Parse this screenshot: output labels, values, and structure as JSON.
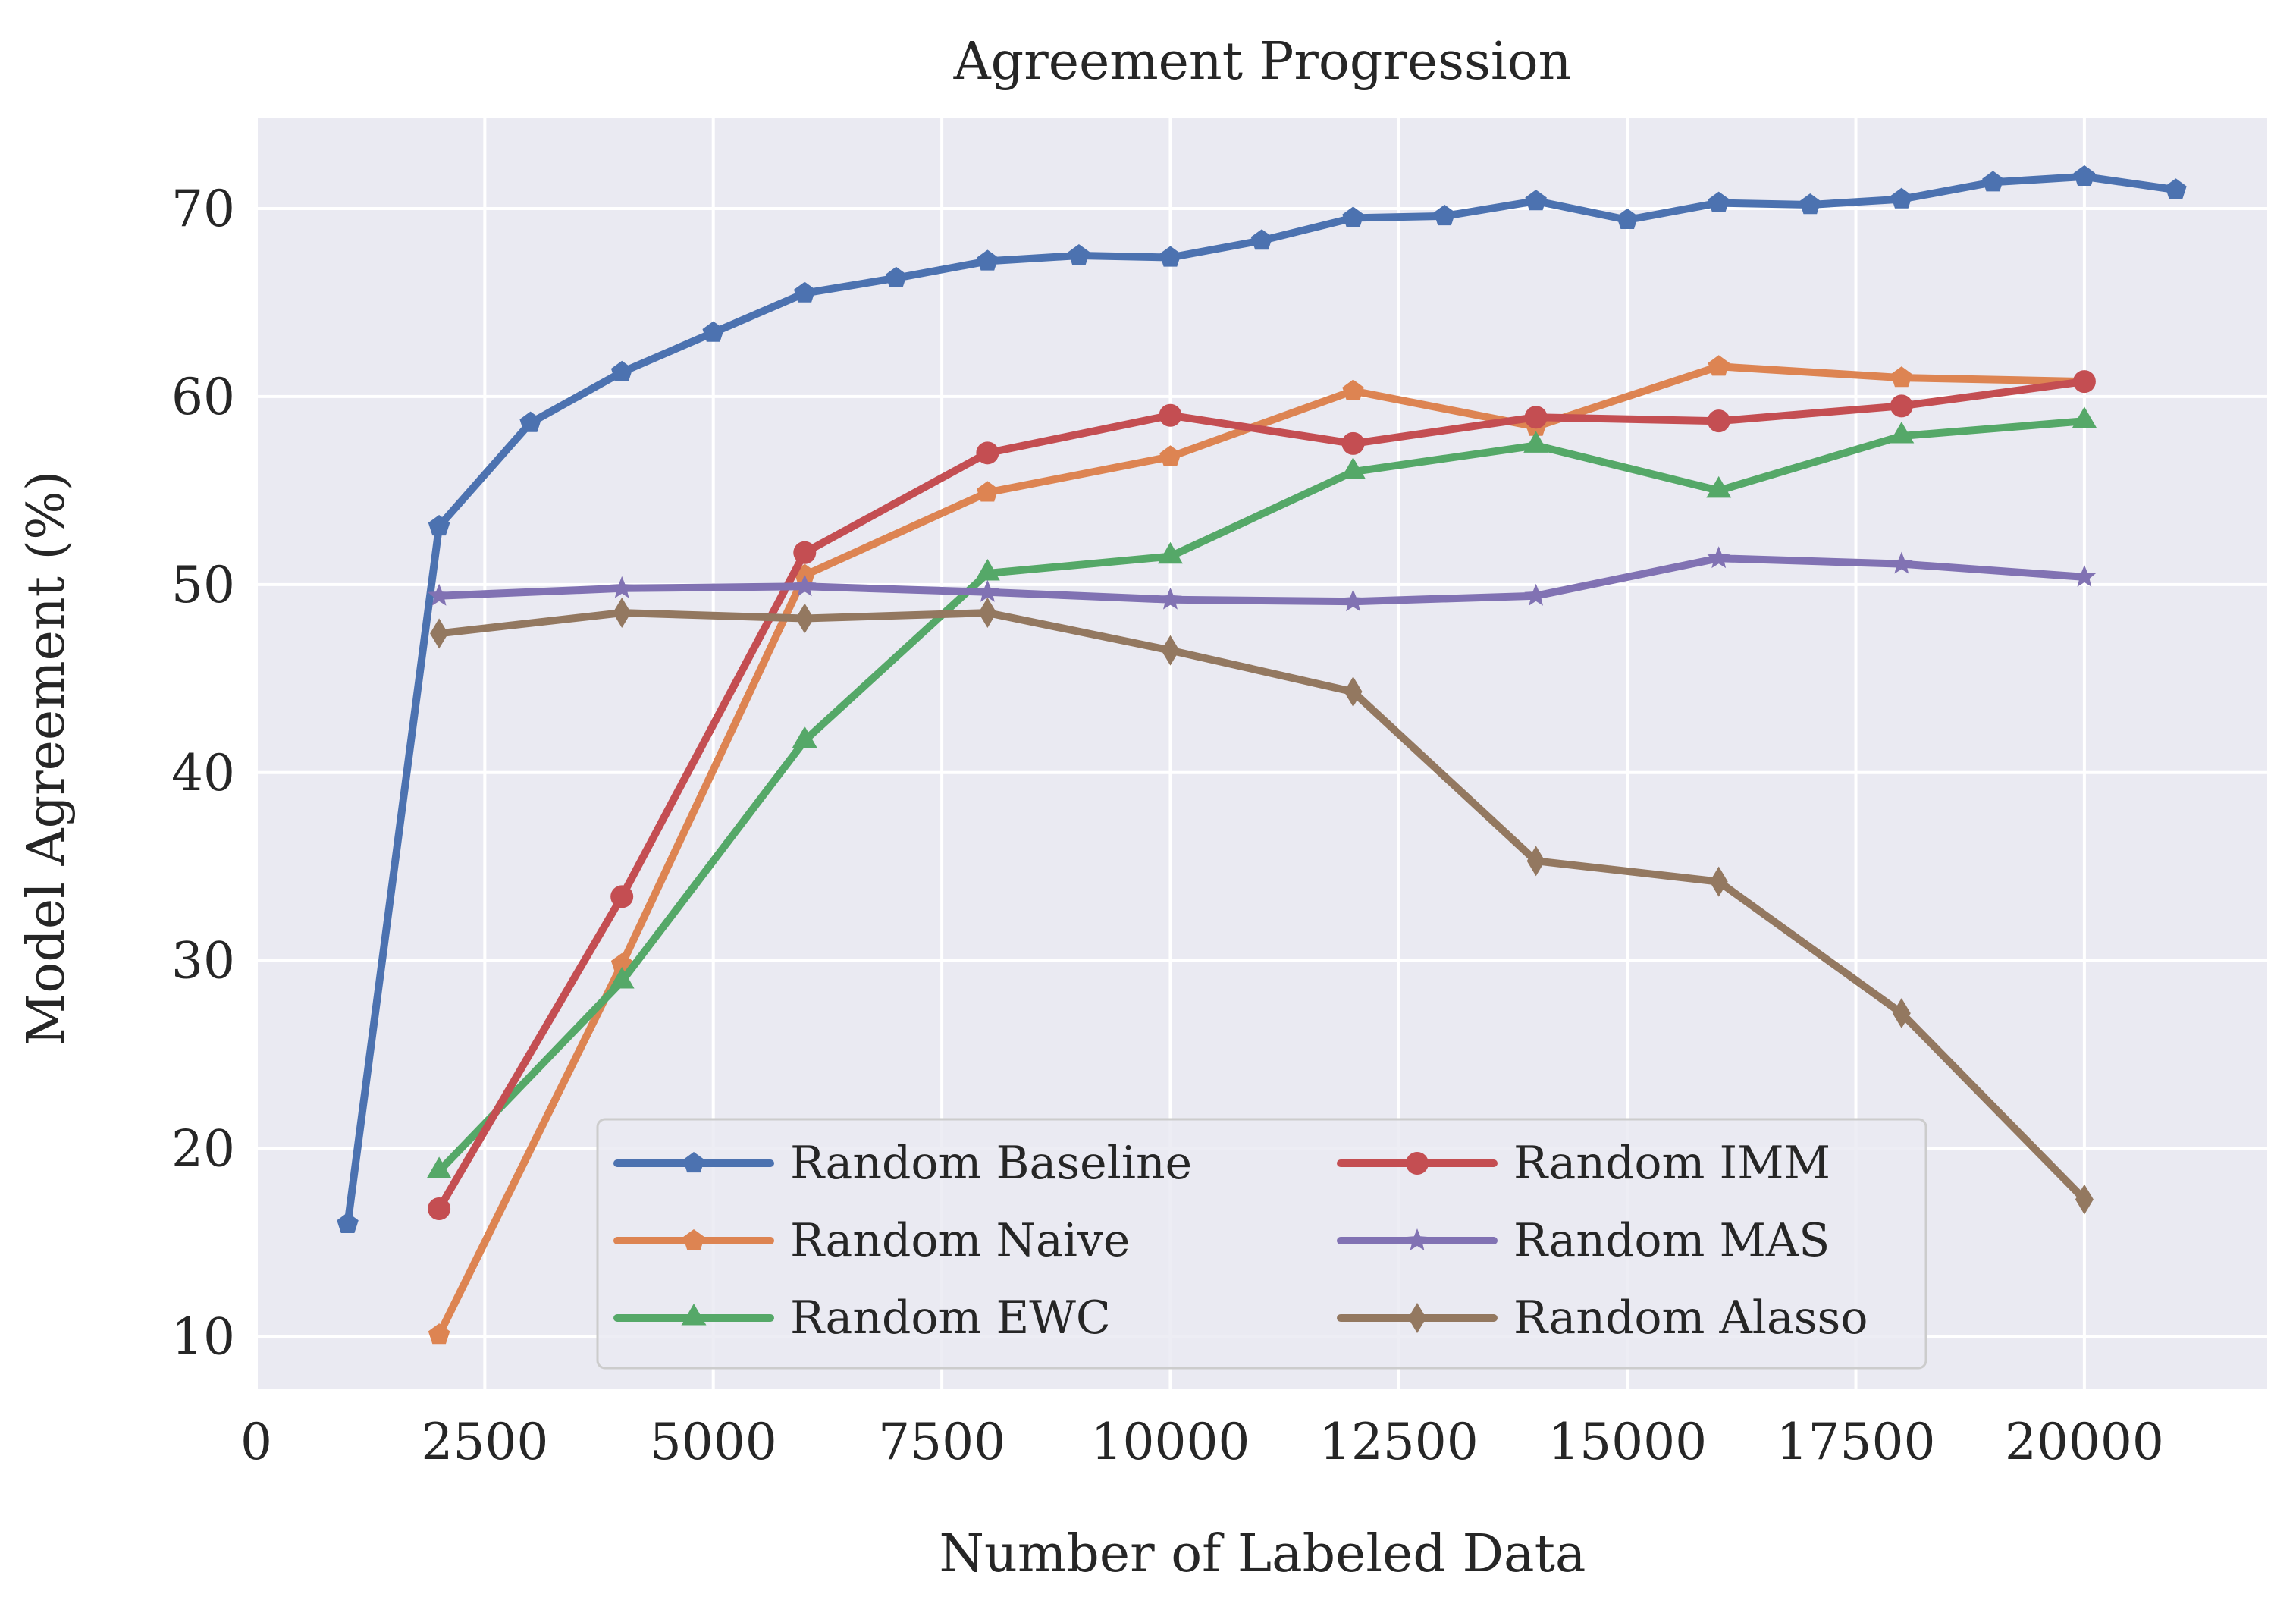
{
  "chart_data": {
    "type": "line",
    "title": "Agreement Progression",
    "xlabel": "Number of Labeled Data",
    "ylabel": "Model Agreement (%)",
    "xlim": [
      0,
      22000
    ],
    "ylim": [
      7.2,
      74.8
    ],
    "xticks": [
      0,
      2500,
      5000,
      7500,
      10000,
      12500,
      15000,
      17500,
      20000
    ],
    "yticks": [
      10,
      20,
      30,
      40,
      50,
      60,
      70
    ],
    "grid": true,
    "legend_position": "lower center",
    "series": [
      {
        "name": "Random Baseline",
        "color": "#4c72b0",
        "marker": "pentagon",
        "x": [
          1000,
          2000,
          3000,
          4000,
          5000,
          6000,
          7000,
          8000,
          9000,
          10000,
          11000,
          12000,
          13000,
          14000,
          15000,
          16000,
          17000,
          18000,
          19000,
          20000,
          21000
        ],
        "y": [
          16.0,
          53.1,
          58.6,
          61.3,
          63.4,
          65.5,
          66.3,
          67.2,
          67.5,
          67.4,
          68.3,
          69.5,
          69.6,
          70.4,
          69.4,
          70.3,
          70.2,
          70.5,
          71.4,
          71.7,
          71.0
        ]
      },
      {
        "name": "Random Naive",
        "color": "#dd8452",
        "marker": "pentagon",
        "x": [
          2000,
          4000,
          6000,
          8000,
          10000,
          12000,
          14000,
          16000,
          18000,
          20000
        ],
        "y": [
          10.1,
          29.8,
          50.5,
          54.9,
          56.8,
          60.3,
          58.4,
          61.6,
          61.0,
          60.8
        ]
      },
      {
        "name": "Random EWC",
        "color": "#55a868",
        "marker": "triangle",
        "x": [
          2000,
          4000,
          6000,
          8000,
          10000,
          12000,
          14000,
          16000,
          18000,
          20000
        ],
        "y": [
          18.8,
          28.9,
          41.7,
          50.6,
          51.5,
          56.0,
          57.4,
          55.0,
          57.9,
          58.7
        ]
      },
      {
        "name": "Random IMM",
        "color": "#c44e52",
        "marker": "circle",
        "x": [
          2000,
          4000,
          6000,
          8000,
          10000,
          12000,
          14000,
          16000,
          18000,
          20000
        ],
        "y": [
          16.8,
          33.4,
          51.7,
          57.0,
          59.0,
          57.5,
          58.9,
          58.7,
          59.5,
          60.8
        ]
      },
      {
        "name": "Random MAS",
        "color": "#8172b3",
        "marker": "star",
        "x": [
          2000,
          4000,
          6000,
          8000,
          10000,
          12000,
          14000,
          16000,
          18000,
          20000
        ],
        "y": [
          49.4,
          49.8,
          49.9,
          49.6,
          49.2,
          49.1,
          49.4,
          51.4,
          51.1,
          50.4
        ]
      },
      {
        "name": "Random Alasso",
        "color": "#937860",
        "marker": "thin_diamond",
        "x": [
          2000,
          4000,
          6000,
          8000,
          10000,
          12000,
          14000,
          16000,
          18000,
          20000
        ],
        "y": [
          47.4,
          48.5,
          48.2,
          48.5,
          46.5,
          44.3,
          35.3,
          34.2,
          27.2,
          17.3
        ]
      }
    ]
  }
}
